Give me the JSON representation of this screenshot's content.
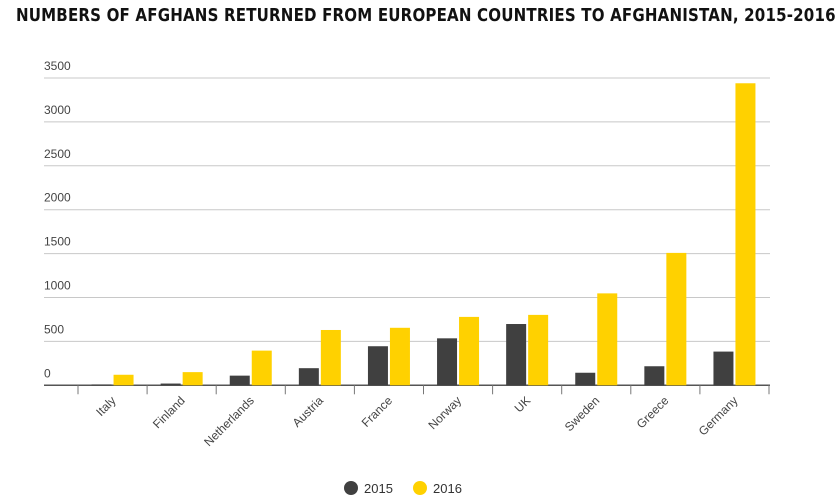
{
  "chart_data": {
    "type": "bar",
    "title": "NUMBERS OF AFGHANS RETURNED FROM EUROPEAN COUNTRIES TO AFGHANISTAN, 2015-2016",
    "xlabel": "",
    "ylabel": "",
    "categories": [
      "Italy",
      "Finland",
      "Netherlands",
      "Austria",
      "France",
      "Norway",
      "UK",
      "Sweden",
      "Greece",
      "Germany"
    ],
    "series": [
      {
        "name": "2015",
        "color": "#404040",
        "values": [
          10,
          20,
          110,
          195,
          445,
          535,
          698,
          143,
          217,
          384
        ]
      },
      {
        "name": "2016",
        "color": "#ffd100",
        "values": [
          120,
          150,
          395,
          630,
          655,
          779,
          802,
          1047,
          1508,
          3440
        ]
      }
    ],
    "ylim": [
      0,
      3500
    ],
    "yticks": [
      0,
      500,
      1000,
      1500,
      2000,
      2500,
      3000,
      3500
    ],
    "grid": true,
    "legend": "bottom-center"
  }
}
